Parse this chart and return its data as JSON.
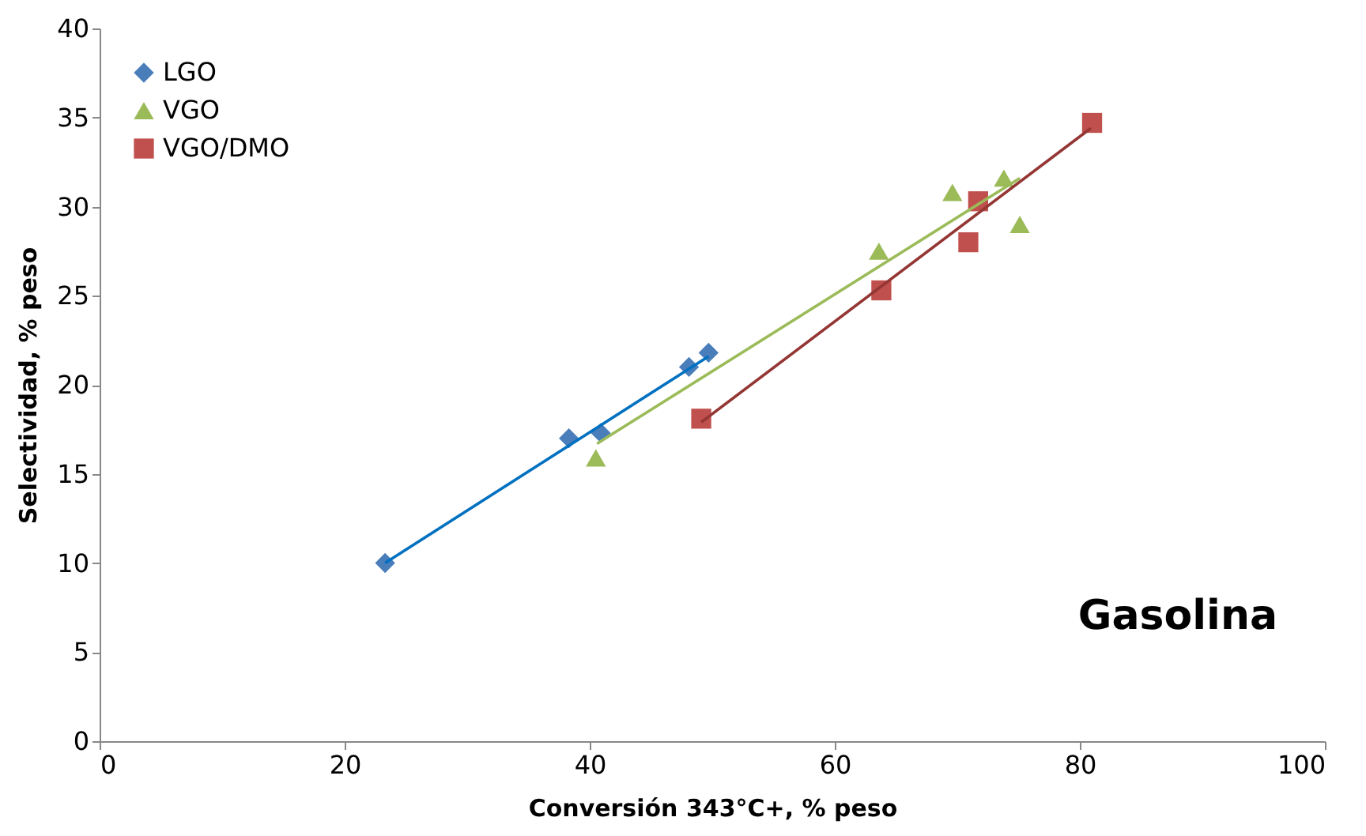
{
  "chart_data": {
    "type": "scatter",
    "xlabel": "Conversión 343°C+, % peso",
    "ylabel": "Selectividad, % peso",
    "annotations": [
      "Gasolina"
    ],
    "xlim": [
      0,
      100
    ],
    "xticks": [
      0,
      20,
      40,
      60,
      80,
      100
    ],
    "ylim": [
      0,
      40
    ],
    "yticks": [
      0,
      5,
      10,
      15,
      20,
      25,
      30,
      35,
      40
    ],
    "grid": false,
    "legend": "top left",
    "series": [
      {
        "name": "LGO",
        "color": "#4a7ebb",
        "marker": "diamond",
        "x": [
          23.3,
          38.3,
          40.9,
          48.1,
          49.7
        ],
        "values": [
          10.0,
          17.0,
          17.3,
          21.0,
          21.8
        ]
      },
      {
        "name": "VGO",
        "color": "#9bbb59",
        "marker": "triangle",
        "x": [
          40.5,
          63.6,
          69.6,
          73.8,
          75.1
        ],
        "values": [
          15.9,
          27.5,
          30.8,
          31.6,
          29.0
        ]
      },
      {
        "name": "VGO/DMO",
        "color": "#c0504d",
        "marker": "square",
        "x": [
          49.1,
          63.8,
          70.9,
          71.7,
          81.0
        ],
        "values": [
          18.1,
          25.3,
          28.0,
          30.3,
          34.7
        ]
      },
      {
        "type": "line",
        "color": "#0070c0",
        "marker": "none",
        "x": [
          23.3,
          49.7
        ],
        "values": [
          10.0,
          21.6
        ]
      },
      {
        "type": "line",
        "color": "#9bbb59",
        "marker": "none",
        "x": [
          40.6,
          75.1
        ],
        "values": [
          16.7,
          31.6
        ]
      },
      {
        "type": "line",
        "color": "#943634",
        "marker": "none",
        "x": [
          49.1,
          80.9
        ],
        "values": [
          17.9,
          34.4
        ]
      }
    ]
  }
}
